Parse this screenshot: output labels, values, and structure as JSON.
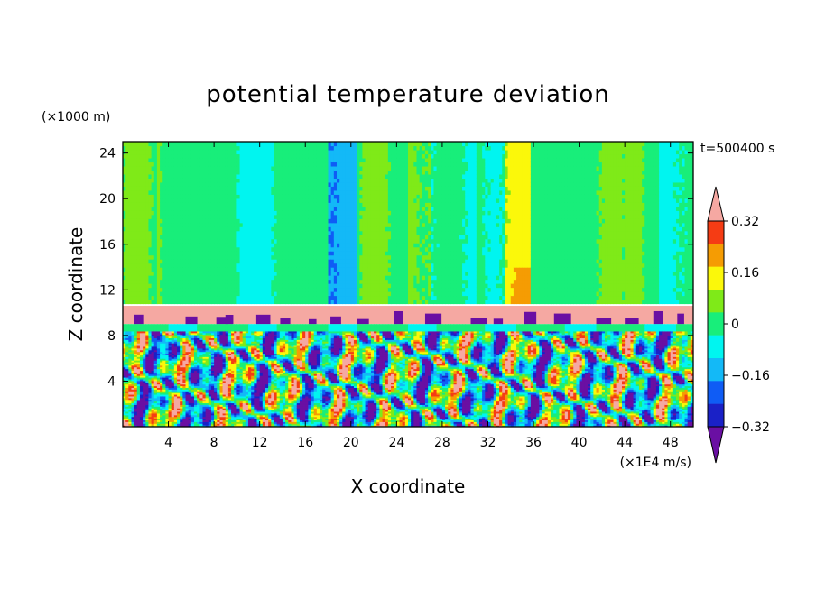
{
  "chart_data": {
    "type": "heatmap",
    "title": "potential temperature deviation",
    "xlabel": "X coordinate",
    "ylabel": "Z coordinate",
    "x_unit": "(×1E4 m/s)",
    "y_unit": "(×1000 m)",
    "time_label": "t=500400 s",
    "xlim": [
      0,
      50
    ],
    "ylim": [
      0,
      25
    ],
    "x_ticks": [
      4,
      8,
      12,
      16,
      20,
      24,
      28,
      32,
      36,
      40,
      44,
      48
    ],
    "y_ticks": [
      4,
      8,
      12,
      16,
      20,
      24
    ],
    "colorbar": {
      "levels": [
        -0.4,
        -0.32,
        -0.24,
        -0.16,
        -0.08,
        0,
        0.08,
        0.16,
        0.24,
        0.32,
        0.4
      ],
      "tick_labels": [
        "0.32",
        "0.16",
        "0",
        "−0.16",
        "−0.32"
      ],
      "tick_values": [
        0.32,
        0.16,
        0,
        -0.16,
        -0.32
      ],
      "colors": [
        "#6a0fa3",
        "#1a21c7",
        "#0f5cf5",
        "#13b9f7",
        "#00f5f0",
        "#18ee7a",
        "#7fea18",
        "#fbf80a",
        "#f59c03",
        "#f53c14",
        "#f5a8a2"
      ],
      "extend": "both"
    },
    "series": [
      {
        "layer": "upper",
        "z_range": [
          10.8,
          25
        ],
        "note_value": "near 0 with warm column at x≈34–36"
      },
      {
        "layer": "tropopause",
        "z_range": [
          8.8,
          10.8
        ],
        "value": 0.4
      },
      {
        "layer": "lower",
        "z_range": [
          0,
          8.8
        ],
        "value_range": [
          -0.4,
          0.4
        ]
      }
    ]
  }
}
